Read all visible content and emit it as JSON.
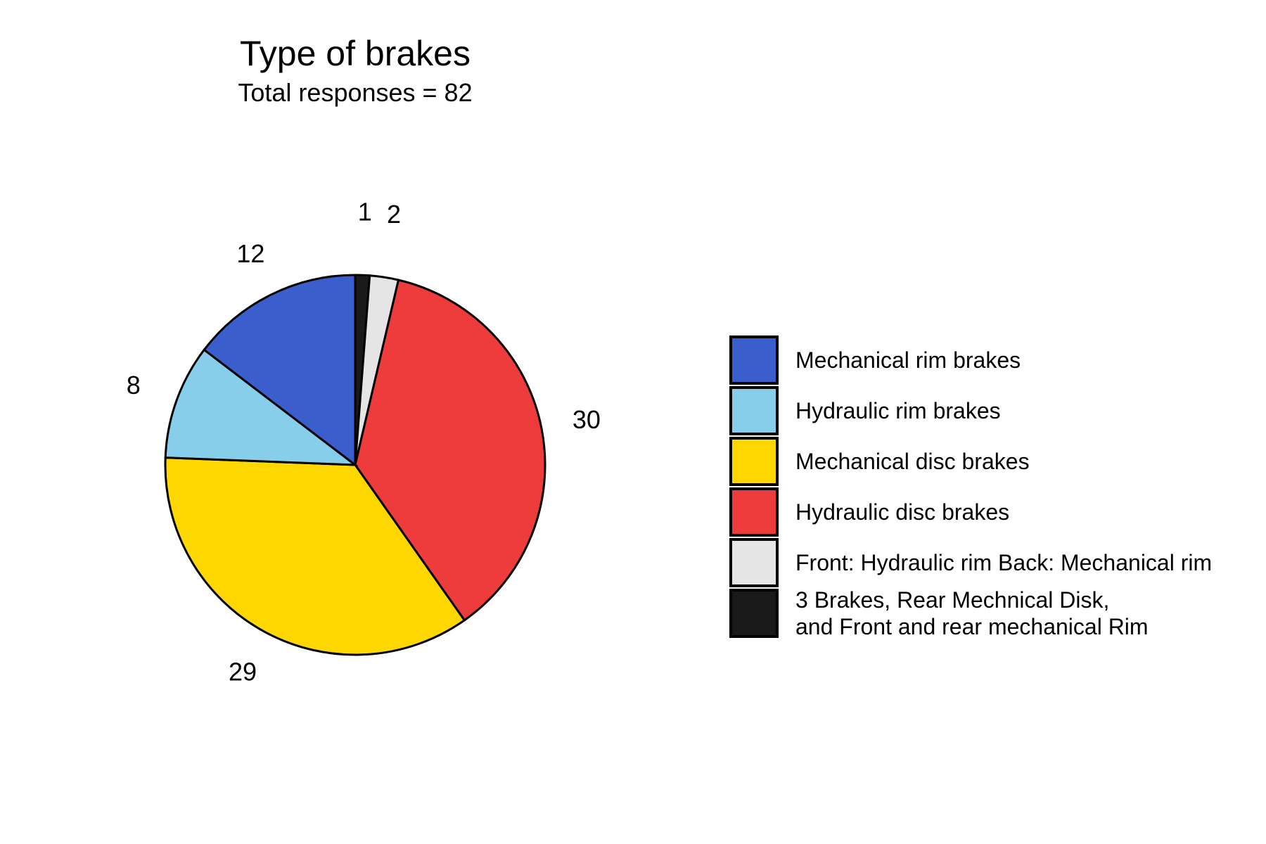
{
  "chart_data": {
    "type": "pie",
    "title": "Type of brakes",
    "subtitle": "Total responses = 82",
    "legend_position": "right",
    "slices": [
      {
        "label": "Mechanical rim brakes",
        "value": 12,
        "color": "#3A5FCD"
      },
      {
        "label": "Hydraulic rim brakes",
        "value": 8,
        "color": "#87CEEB"
      },
      {
        "label": "Mechanical disc brakes",
        "value": 29,
        "color": "#FFD700"
      },
      {
        "label": "Hydraulic disc brakes",
        "value": 30,
        "color": "#EE3B3B"
      },
      {
        "label": "Front: Hydraulic rim Back: Mechanical rim",
        "value": 2,
        "color": "#E5E5E5"
      },
      {
        "label": "3 Brakes, Rear Mechnical Disk,\nand Front and rear mechanical Rim",
        "value": 1,
        "color": "#1A1A1A"
      }
    ]
  }
}
